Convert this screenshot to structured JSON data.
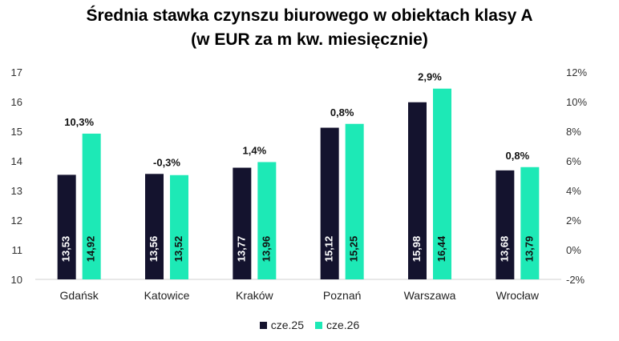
{
  "chart_data": {
    "type": "bar",
    "title": "Średnia stawka czynszu biurowego w obiektach klasy A",
    "subtitle": "(w EUR za m kw. miesięcznie)",
    "categories": [
      "Gdańsk",
      "Katowice",
      "Kraków",
      "Poznań",
      "Warszawa",
      "Wrocław"
    ],
    "series": [
      {
        "name": "cze.25",
        "color": "#14132e",
        "values": [
          13.53,
          13.56,
          13.77,
          15.12,
          15.98,
          13.68
        ],
        "labels": [
          "13,53",
          "13,56",
          "13,77",
          "15,12",
          "15,98",
          "13,68"
        ]
      },
      {
        "name": "cze.26",
        "color": "#1de9b6",
        "values": [
          14.92,
          13.52,
          13.96,
          15.25,
          16.44,
          13.79
        ],
        "labels": [
          "14,92",
          "13,52",
          "13,96",
          "15,25",
          "16,44",
          "13,79"
        ]
      }
    ],
    "change_labels": [
      "10,3%",
      "-0,3%",
      "1,4%",
      "0,8%",
      "2,9%",
      "0,8%"
    ],
    "y_left": {
      "min": 10,
      "max": 17,
      "ticks": [
        "10",
        "11",
        "12",
        "13",
        "14",
        "15",
        "16",
        "17"
      ]
    },
    "y_right": {
      "min": -2,
      "max": 12,
      "ticks": [
        "-2%",
        "0%",
        "2%",
        "4%",
        "6%",
        "8%",
        "10%",
        "12%"
      ]
    },
    "grid": false,
    "legend_position": "bottom"
  }
}
